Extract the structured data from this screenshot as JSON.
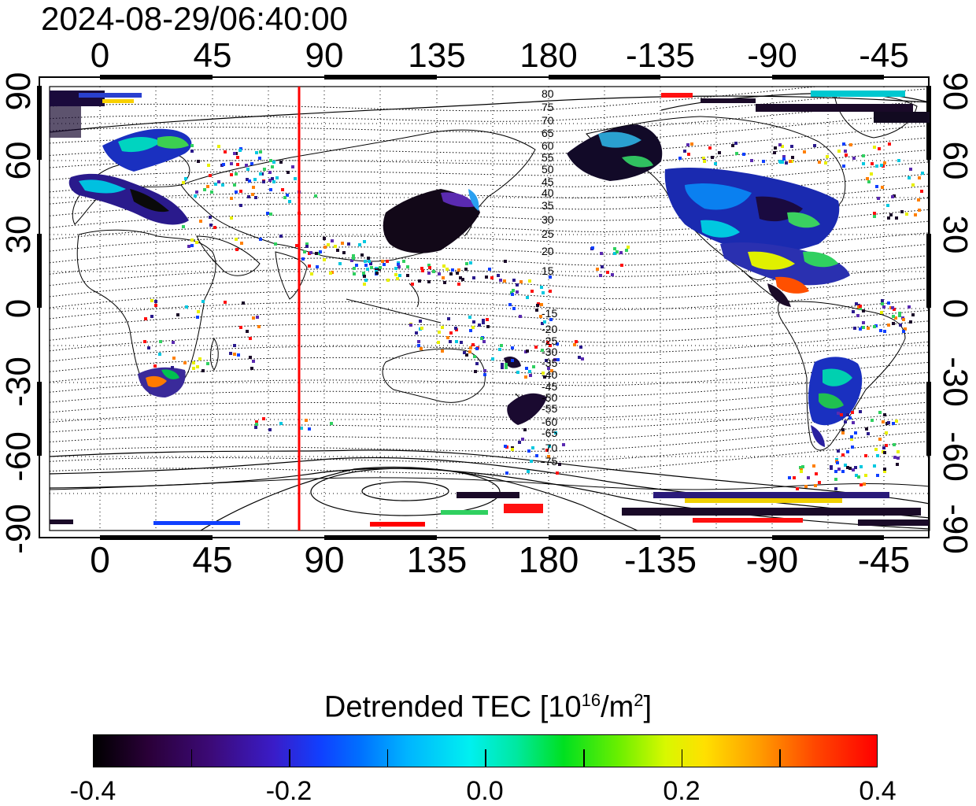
{
  "timestamp": "2024-08-29/06:40:00",
  "lon_labels": [
    "0",
    "45",
    "90",
    "135",
    "180",
    "-135",
    "-90",
    "-45"
  ],
  "lat_labels_left": [
    "90",
    "60",
    "30",
    "0",
    "-30",
    "-60",
    "-90"
  ],
  "lat_labels_right": [
    "90",
    "60",
    "30",
    "0",
    "-30",
    "-60",
    "-90"
  ],
  "contour_labels": [
    "80",
    "75",
    "70",
    "65",
    "60",
    "55",
    "50",
    "45",
    "40",
    "35",
    "30",
    "25",
    "20",
    "15",
    "-15",
    "-20",
    "-25",
    "-30",
    "-35",
    "-40",
    "-45",
    "-50",
    "-55",
    "-60",
    "-65",
    "-70",
    "-75"
  ],
  "colorbar": {
    "title_main": "Detrended TEC  [10",
    "title_exp": "16",
    "title_unit": "/m",
    "title_exp2": "2",
    "title_end": "]",
    "tick_labels": [
      "-0.4",
      "-0.2",
      "0.0",
      "0.2",
      "0.4"
    ]
  },
  "colors": {
    "terminator_line": "#ff0000",
    "frame": "#000000"
  }
}
